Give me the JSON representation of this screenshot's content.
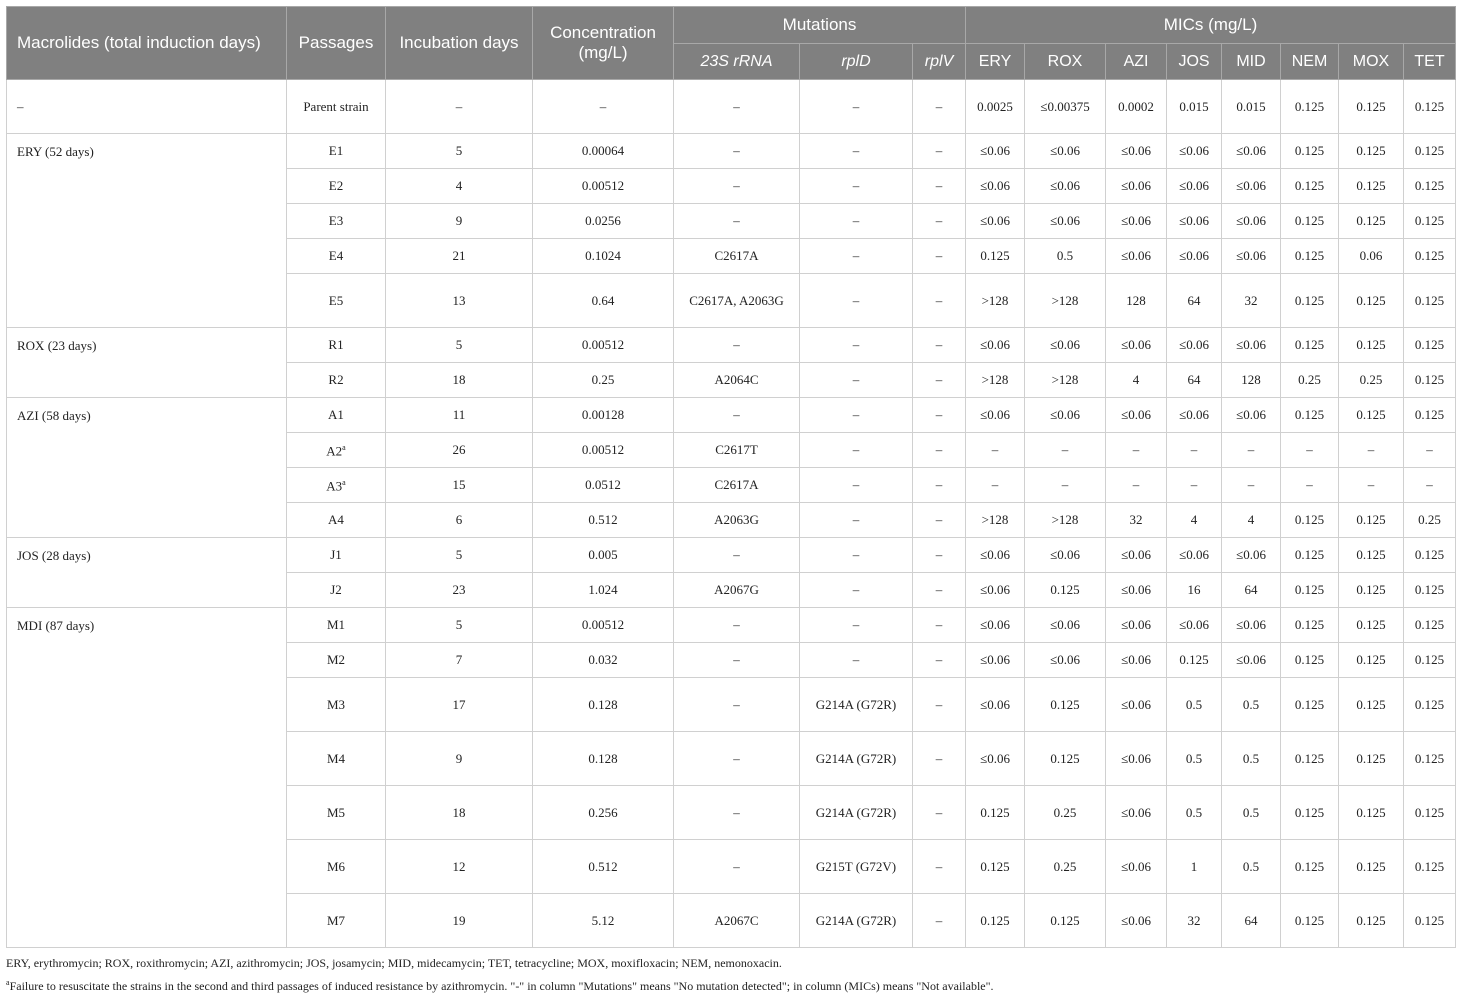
{
  "header": {
    "macrolides": "Macrolides (total induction days)",
    "passages": "Passages",
    "incubation": "Incubation days",
    "concentration": "Concentration (mg/L)",
    "mutations": "Mutations",
    "mics": "MICs (mg/L)",
    "mutation_cols": [
      "23S rRNA",
      "rplD",
      "rplV"
    ],
    "mic_cols": [
      "ERY",
      "ROX",
      "AZI",
      "JOS",
      "MID",
      "NEM",
      "MOX",
      "TET"
    ]
  },
  "groups": [
    {
      "label": "–",
      "rows": [
        {
          "passage": "Parent strain",
          "sup": "",
          "days": "–",
          "conc": "–",
          "rrna": "–",
          "rplD": "–",
          "rplV": "–",
          "mics": [
            "0.0025",
            "≤0.00375",
            "0.0002",
            "0.015",
            "0.015",
            "0.125",
            "0.125",
            "0.125"
          ],
          "tall": true
        }
      ]
    },
    {
      "label": "ERY (52 days)",
      "rows": [
        {
          "passage": "E1",
          "sup": "",
          "days": "5",
          "conc": "0.00064",
          "rrna": "–",
          "rplD": "–",
          "rplV": "–",
          "mics": [
            "≤0.06",
            "≤0.06",
            "≤0.06",
            "≤0.06",
            "≤0.06",
            "0.125",
            "0.125",
            "0.125"
          ]
        },
        {
          "passage": "E2",
          "sup": "",
          "days": "4",
          "conc": "0.00512",
          "rrna": "–",
          "rplD": "–",
          "rplV": "–",
          "mics": [
            "≤0.06",
            "≤0.06",
            "≤0.06",
            "≤0.06",
            "≤0.06",
            "0.125",
            "0.125",
            "0.125"
          ]
        },
        {
          "passage": "E3",
          "sup": "",
          "days": "9",
          "conc": "0.0256",
          "rrna": "–",
          "rplD": "–",
          "rplV": "–",
          "mics": [
            "≤0.06",
            "≤0.06",
            "≤0.06",
            "≤0.06",
            "≤0.06",
            "0.125",
            "0.125",
            "0.125"
          ]
        },
        {
          "passage": "E4",
          "sup": "",
          "days": "21",
          "conc": "0.1024",
          "rrna": "C2617A",
          "rplD": "–",
          "rplV": "–",
          "mics": [
            "0.125",
            "0.5",
            "≤0.06",
            "≤0.06",
            "≤0.06",
            "0.125",
            "0.06",
            "0.125"
          ]
        },
        {
          "passage": "E5",
          "sup": "",
          "days": "13",
          "conc": "0.64",
          "rrna": "C2617A, A2063G",
          "rplD": "–",
          "rplV": "–",
          "mics": [
            ">128",
            ">128",
            "128",
            "64",
            "32",
            "0.125",
            "0.125",
            "0.125"
          ],
          "tall": true
        }
      ]
    },
    {
      "label": "ROX (23 days)",
      "rows": [
        {
          "passage": "R1",
          "sup": "",
          "days": "5",
          "conc": "0.00512",
          "rrna": "–",
          "rplD": "–",
          "rplV": "–",
          "mics": [
            "≤0.06",
            "≤0.06",
            "≤0.06",
            "≤0.06",
            "≤0.06",
            "0.125",
            "0.125",
            "0.125"
          ]
        },
        {
          "passage": "R2",
          "sup": "",
          "days": "18",
          "conc": "0.25",
          "rrna": "A2064C",
          "rplD": "–",
          "rplV": "–",
          "mics": [
            ">128",
            ">128",
            "4",
            "64",
            "128",
            "0.25",
            "0.25",
            "0.125"
          ]
        }
      ]
    },
    {
      "label": "AZI (58 days)",
      "rows": [
        {
          "passage": "A1",
          "sup": "",
          "days": "11",
          "conc": "0.00128",
          "rrna": "–",
          "rplD": "–",
          "rplV": "–",
          "mics": [
            "≤0.06",
            "≤0.06",
            "≤0.06",
            "≤0.06",
            "≤0.06",
            "0.125",
            "0.125",
            "0.125"
          ]
        },
        {
          "passage": "A2",
          "sup": "a",
          "days": "26",
          "conc": "0.00512",
          "rrna": "C2617T",
          "rplD": "–",
          "rplV": "–",
          "mics": [
            "–",
            "–",
            "–",
            "–",
            "–",
            "–",
            "–",
            "–"
          ]
        },
        {
          "passage": "A3",
          "sup": "a",
          "days": "15",
          "conc": "0.0512",
          "rrna": "C2617A",
          "rplD": "–",
          "rplV": "–",
          "mics": [
            "–",
            "–",
            "–",
            "–",
            "–",
            "–",
            "–",
            "–"
          ]
        },
        {
          "passage": "A4",
          "sup": "",
          "days": "6",
          "conc": "0.512",
          "rrna": "A2063G",
          "rplD": "–",
          "rplV": "–",
          "mics": [
            ">128",
            ">128",
            "32",
            "4",
            "4",
            "0.125",
            "0.125",
            "0.25"
          ]
        }
      ]
    },
    {
      "label": "JOS (28 days)",
      "rows": [
        {
          "passage": "J1",
          "sup": "",
          "days": "5",
          "conc": "0.005",
          "rrna": "–",
          "rplD": "–",
          "rplV": "–",
          "mics": [
            "≤0.06",
            "≤0.06",
            "≤0.06",
            "≤0.06",
            "≤0.06",
            "0.125",
            "0.125",
            "0.125"
          ]
        },
        {
          "passage": "J2",
          "sup": "",
          "days": "23",
          "conc": "1.024",
          "rrna": "A2067G",
          "rplD": "–",
          "rplV": "–",
          "mics": [
            "≤0.06",
            "0.125",
            "≤0.06",
            "16",
            "64",
            "0.125",
            "0.125",
            "0.125"
          ]
        }
      ]
    },
    {
      "label": "MDI (87 days)",
      "rows": [
        {
          "passage": "M1",
          "sup": "",
          "days": "5",
          "conc": "0.00512",
          "rrna": "–",
          "rplD": "–",
          "rplV": "–",
          "mics": [
            "≤0.06",
            "≤0.06",
            "≤0.06",
            "≤0.06",
            "≤0.06",
            "0.125",
            "0.125",
            "0.125"
          ]
        },
        {
          "passage": "M2",
          "sup": "",
          "days": "7",
          "conc": "0.032",
          "rrna": "–",
          "rplD": "–",
          "rplV": "–",
          "mics": [
            "≤0.06",
            "≤0.06",
            "≤0.06",
            "0.125",
            "≤0.06",
            "0.125",
            "0.125",
            "0.125"
          ]
        },
        {
          "passage": "M3",
          "sup": "",
          "days": "17",
          "conc": "0.128",
          "rrna": "–",
          "rplD": "G214A (G72R)",
          "rplV": "–",
          "mics": [
            "≤0.06",
            "0.125",
            "≤0.06",
            "0.5",
            "0.5",
            "0.125",
            "0.125",
            "0.125"
          ],
          "tall": true
        },
        {
          "passage": "M4",
          "sup": "",
          "days": "9",
          "conc": "0.128",
          "rrna": "–",
          "rplD": "G214A (G72R)",
          "rplV": "–",
          "mics": [
            "≤0.06",
            "0.125",
            "≤0.06",
            "0.5",
            "0.5",
            "0.125",
            "0.125",
            "0.125"
          ],
          "tall": true
        },
        {
          "passage": "M5",
          "sup": "",
          "days": "18",
          "conc": "0.256",
          "rrna": "–",
          "rplD": "G214A (G72R)",
          "rplV": "–",
          "mics": [
            "0.125",
            "0.25",
            "≤0.06",
            "0.5",
            "0.5",
            "0.125",
            "0.125",
            "0.125"
          ],
          "tall": true
        },
        {
          "passage": "M6",
          "sup": "",
          "days": "12",
          "conc": "0.512",
          "rrna": "–",
          "rplD": "G215T (G72V)",
          "rplV": "–",
          "mics": [
            "0.125",
            "0.25",
            "≤0.06",
            "1",
            "0.5",
            "0.125",
            "0.125",
            "0.125"
          ],
          "tall": true
        },
        {
          "passage": "M7",
          "sup": "",
          "days": "19",
          "conc": "5.12",
          "rrna": "A2067C",
          "rplD": "G214A (G72R)",
          "rplV": "–",
          "mics": [
            "0.125",
            "0.125",
            "≤0.06",
            "32",
            "64",
            "0.125",
            "0.125",
            "0.125"
          ],
          "tall": true
        }
      ]
    }
  ],
  "footnotes": {
    "abbreviations": "ERY, erythromycin; ROX, roxithromycin; AZI, azithromycin; JOS, josamycin; MID, midecamycin; TET, tetracycline; MOX, moxifloxacin; NEM, nemonoxacin.",
    "note_mark": "a",
    "note": "Failure to resuscitate the strains in the second and third passages of induced resistance by azithromycin. \"-\" in column \"Mutations\" means \"No mutation detected\"; in column (MICs) means \"Not available\"."
  }
}
